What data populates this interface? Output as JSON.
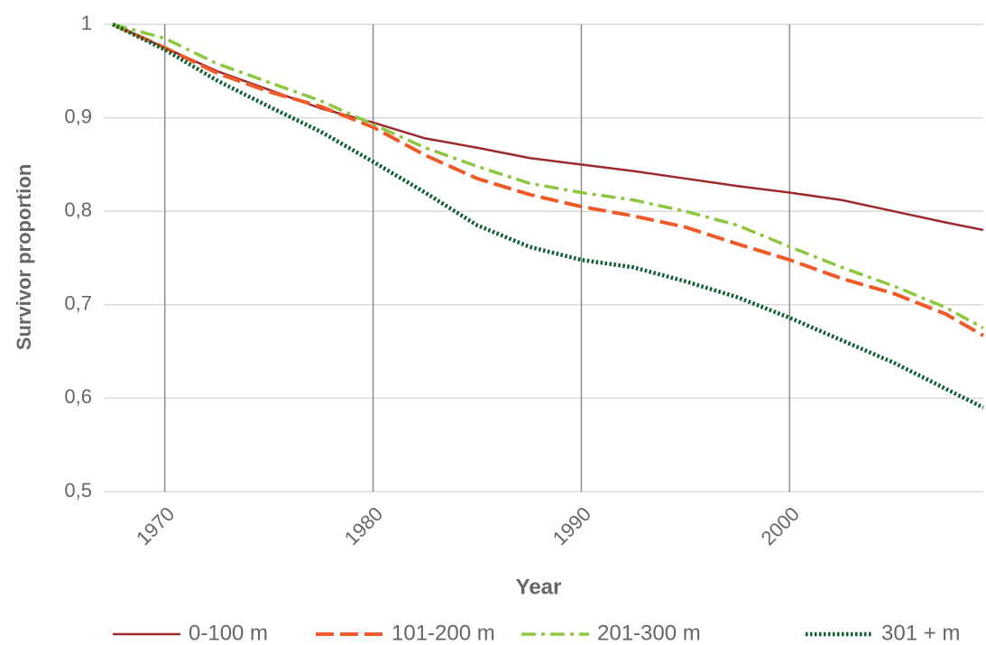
{
  "chart_data": {
    "type": "line",
    "xlabel": "Year",
    "ylabel": "Survivor proportion",
    "x": [
      1967.5,
      1970,
      1972.5,
      1975,
      1977.5,
      1980,
      1982.5,
      1985,
      1987.5,
      1990,
      1992.5,
      1995,
      1997.5,
      2000,
      2002.5,
      2005,
      2007.5,
      2009.3
    ],
    "series": [
      {
        "name": "0-100 m",
        "color": "#9e2a2b",
        "values": [
          1,
          0.975,
          0.95,
          0.93,
          0.91,
          0.895,
          0.878,
          0.868,
          0.857,
          0.85,
          0.843,
          0.835,
          0.827,
          0.82,
          0.812,
          0.8,
          0.788,
          0.78
        ]
      },
      {
        "name": "101-200 m",
        "color": "#f05a28",
        "values": [
          1,
          0.975,
          0.948,
          0.928,
          0.912,
          0.89,
          0.86,
          0.835,
          0.818,
          0.805,
          0.795,
          0.783,
          0.765,
          0.748,
          0.728,
          0.712,
          0.69,
          0.667
        ]
      },
      {
        "name": "201-300 m",
        "color": "#8dc63f",
        "values": [
          1,
          0.985,
          0.958,
          0.938,
          0.918,
          0.893,
          0.868,
          0.848,
          0.83,
          0.82,
          0.812,
          0.8,
          0.785,
          0.762,
          0.74,
          0.72,
          0.697,
          0.675
        ]
      },
      {
        "name": "301 + m",
        "color": "#0b5e2e",
        "values": [
          1,
          0.973,
          0.94,
          0.912,
          0.885,
          0.853,
          0.82,
          0.785,
          0.762,
          0.748,
          0.74,
          0.725,
          0.708,
          0.686,
          0.662,
          0.638,
          0.61,
          0.59
        ]
      }
    ],
    "xlim": [
      1967.5,
      2009.3
    ],
    "xticks": [
      1970,
      1980,
      1990,
      2000
    ],
    "ylim": [
      0.5,
      1
    ],
    "yticks": [
      {
        "value": 0.5,
        "label": "0,5"
      },
      {
        "value": 0.6,
        "label": "0,6"
      },
      {
        "value": 0.7,
        "label": "0,7"
      },
      {
        "value": 0.8,
        "label": "0,8"
      },
      {
        "value": 0.9,
        "label": "0,9"
      },
      1
    ],
    "grid": true,
    "legend": "bottom"
  }
}
